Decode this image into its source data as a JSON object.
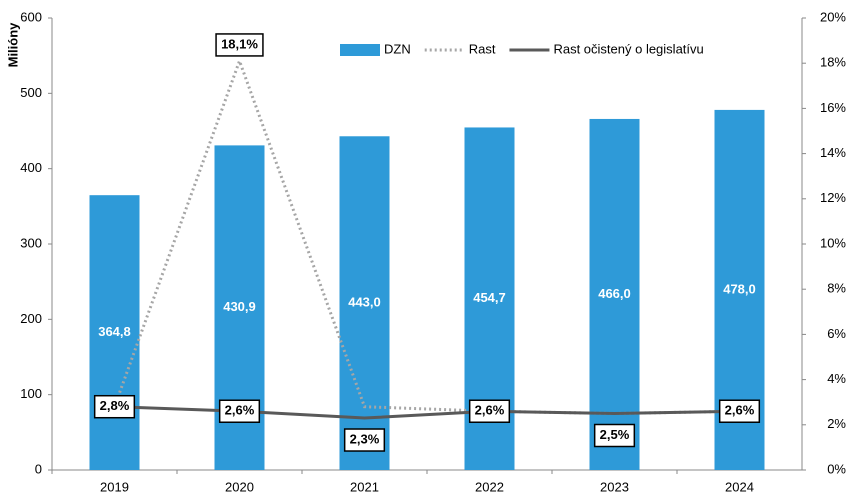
{
  "chart_data": {
    "type": "bar_line",
    "y_label": "Milióny",
    "categories": [
      "2019",
      "2020",
      "2021",
      "2022",
      "2023",
      "2024"
    ],
    "ylim": [
      0,
      600
    ],
    "yticks": [
      0,
      100,
      200,
      300,
      400,
      500,
      600
    ],
    "y2lim": [
      0,
      20
    ],
    "y2ticks": [
      {
        "value": 0,
        "label": "0%"
      },
      {
        "value": 2,
        "label": "2%"
      },
      {
        "value": 4,
        "label": "4%"
      },
      {
        "value": 6,
        "label": "6%"
      },
      {
        "value": 8,
        "label": "8%"
      },
      {
        "value": 10,
        "label": "10%"
      },
      {
        "value": 12,
        "label": "12%"
      },
      {
        "value": 14,
        "label": "14%"
      },
      {
        "value": 16,
        "label": "16%"
      },
      {
        "value": 18,
        "label": "18%"
      },
      {
        "value": 20,
        "label": "20%"
      }
    ],
    "series": [
      {
        "name": "DZN",
        "type": "bar",
        "color": "#2e9ad8",
        "values": [
          364.8,
          430.9,
          443.0,
          454.7,
          466.0,
          478.0
        ],
        "value_labels": [
          "364,8",
          "430,9",
          "443,0",
          "454,7",
          "466,0",
          "478,0"
        ]
      },
      {
        "name": "Rast",
        "type": "line",
        "dash": "dotted",
        "axis": "y2",
        "color": "#a6a6a6",
        "values": [
          2.8,
          18.1,
          2.8,
          2.6,
          2.5,
          2.6
        ],
        "value_labels": [
          null,
          "18,1%",
          null,
          null,
          null,
          null
        ]
      },
      {
        "name": "Rast očistený o legislatívu",
        "type": "line",
        "dash": "solid",
        "axis": "y2",
        "color": "#595959",
        "values": [
          2.8,
          2.6,
          2.3,
          2.6,
          2.5,
          2.6
        ],
        "value_labels": [
          "2,8%",
          "2,6%",
          "2,3%",
          "2,6%",
          "2,5%",
          "2,6%"
        ]
      }
    ]
  }
}
